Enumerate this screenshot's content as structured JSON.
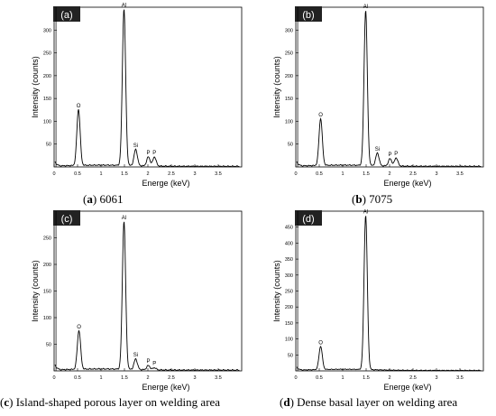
{
  "chart_data": [
    {
      "type": "line",
      "tag": "(a)",
      "caption_letter": "a",
      "caption_text": "6061",
      "xlabel": "Energe (keV)",
      "ylabel": "Intensity (counts)",
      "xlim": [
        0,
        4
      ],
      "ylim": [
        0,
        350
      ],
      "xticks": [
        "0",
        "0.5",
        "1",
        "1.5",
        "2",
        "2.5",
        "3",
        "3.5"
      ],
      "yticks": [
        "50",
        "100",
        "150",
        "200",
        "250",
        "300"
      ],
      "peaks": [
        {
          "label": "O",
          "x": 0.52,
          "y": 125
        },
        {
          "label": "Al",
          "x": 1.49,
          "y": 345
        },
        {
          "label": "Si",
          "x": 1.74,
          "y": 38
        },
        {
          "label": "P",
          "x": 2.01,
          "y": 22
        },
        {
          "label": "P",
          "x": 2.14,
          "y": 22
        }
      ]
    },
    {
      "type": "line",
      "tag": "(b)",
      "caption_letter": "b",
      "caption_text": "7075",
      "xlabel": "Energe (keV)",
      "ylabel": "Intensity (counts)",
      "xlim": [
        0,
        4
      ],
      "ylim": [
        0,
        350
      ],
      "xticks": [
        "0",
        "0.5",
        "1",
        "1.5",
        "2",
        "2.5",
        "3",
        "3.5"
      ],
      "yticks": [
        "50",
        "100",
        "150",
        "200",
        "250",
        "300"
      ],
      "peaks": [
        {
          "label": "O",
          "x": 0.53,
          "y": 105
        },
        {
          "label": "Al",
          "x": 1.49,
          "y": 342
        },
        {
          "label": "Si",
          "x": 1.74,
          "y": 30
        },
        {
          "label": "P",
          "x": 2.01,
          "y": 18
        },
        {
          "label": "P",
          "x": 2.14,
          "y": 20
        }
      ]
    },
    {
      "type": "line",
      "tag": "(c)",
      "caption_letter": "c",
      "caption_text": "Island-shaped porous layer on welding area",
      "xlabel": "Energe (keV)",
      "ylabel": "Intensity (counts)",
      "xlim": [
        0,
        4
      ],
      "ylim": [
        0,
        300
      ],
      "xticks": [
        "0",
        "0.5",
        "1",
        "1.5",
        "2",
        "2.5",
        "3",
        "3.5"
      ],
      "yticks": [
        "50",
        "100",
        "150",
        "200",
        "250"
      ],
      "peaks": [
        {
          "label": "O",
          "x": 0.53,
          "y": 75
        },
        {
          "label": "Al",
          "x": 1.49,
          "y": 280
        },
        {
          "label": "Si",
          "x": 1.74,
          "y": 22
        },
        {
          "label": "P",
          "x": 2.01,
          "y": 10
        },
        {
          "label": "P",
          "x": 2.14,
          "y": 6
        }
      ]
    },
    {
      "type": "line",
      "tag": "(d)",
      "caption_letter": "d",
      "caption_text": "Dense basal layer on welding area",
      "xlabel": "Energe (keV)",
      "ylabel": "Intensity (counts)",
      "xlim": [
        0,
        4
      ],
      "ylim": [
        0,
        500
      ],
      "xticks": [
        "0",
        "0.5",
        "1",
        "1.5",
        "2",
        "2.5",
        "3",
        "3.5"
      ],
      "yticks": [
        "50",
        "100",
        "150",
        "200",
        "250",
        "300",
        "350",
        "400",
        "450"
      ],
      "peaks": [
        {
          "label": "O",
          "x": 0.53,
          "y": 75
        },
        {
          "label": "Al",
          "x": 1.49,
          "y": 485
        }
      ]
    }
  ]
}
